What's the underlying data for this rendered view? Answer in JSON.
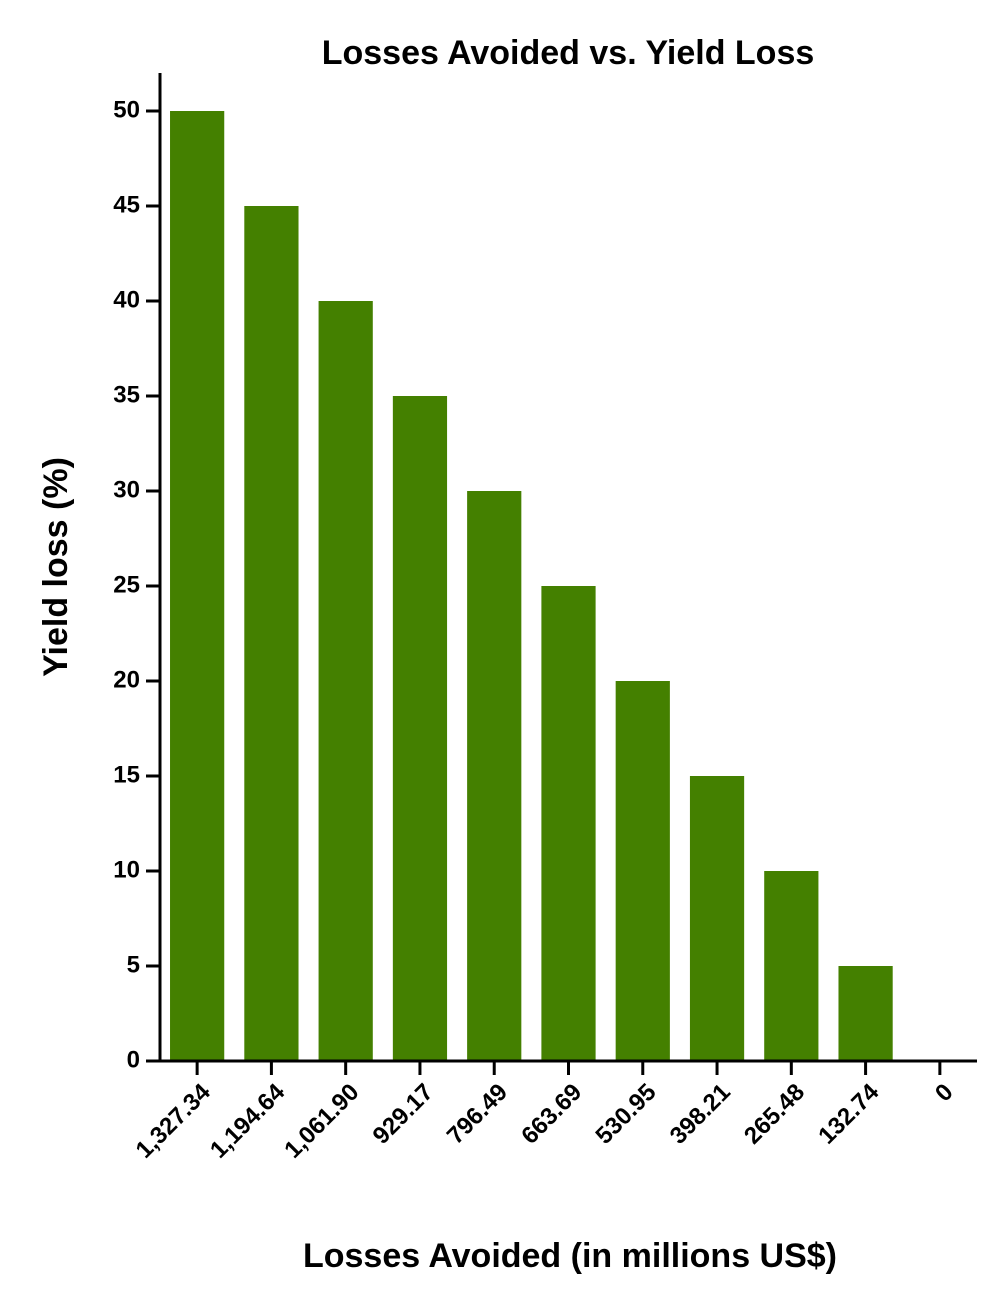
{
  "chart_data": {
    "type": "bar",
    "title": "Losses Avoided vs. Yield Loss",
    "x_label": "Losses Avoided (in millions US$)",
    "y_label": "Yield loss (%)",
    "categories": [
      "1,327.34",
      "1,194.64",
      "1,061.90",
      "929.17",
      "796.49",
      "663.69",
      "530.95",
      "398.21",
      "265.48",
      "132.74",
      "0"
    ],
    "values": [
      50,
      45,
      40,
      35,
      30,
      25,
      20,
      15,
      10,
      5,
      0
    ],
    "color": "#448000",
    "ylim": [
      0,
      52
    ],
    "yticks": [
      0,
      5,
      10,
      15,
      20,
      25,
      30,
      35,
      40,
      45,
      50
    ],
    "grid": false
  }
}
